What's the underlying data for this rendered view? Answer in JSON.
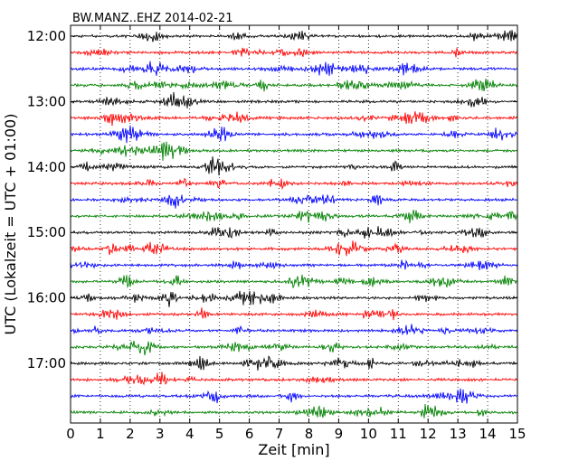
{
  "chart_data": {
    "type": "line",
    "title": "BW.MANZ..EHZ 2014-02-21",
    "xlabel": "Zeit  [min]",
    "ylabel": "UTC (Lokalzeit = UTC + 01:00)",
    "x_ticks": [
      "0",
      "1",
      "2",
      "3",
      "4",
      "5",
      "6",
      "7",
      "8",
      "9",
      "10",
      "11",
      "12",
      "13",
      "14",
      "15"
    ],
    "xlim": [
      0,
      15
    ],
    "y_ticks": [
      "12:00",
      "13:00",
      "14:00",
      "15:00",
      "16:00",
      "17:00"
    ],
    "grid": "vertical dotted at each minute",
    "trace_interval_min": 15,
    "first_trace": "12:00",
    "trace_count": 24,
    "trace_colors": [
      "#000000",
      "#ff0000",
      "#0000ff",
      "#008000"
    ],
    "series": [
      {
        "start": "12:00"
      },
      {
        "start": "12:15"
      },
      {
        "start": "12:30"
      },
      {
        "start": "12:45"
      },
      {
        "start": "13:00"
      },
      {
        "start": "13:15"
      },
      {
        "start": "13:30"
      },
      {
        "start": "13:45"
      },
      {
        "start": "14:00"
      },
      {
        "start": "14:15"
      },
      {
        "start": "14:30"
      },
      {
        "start": "14:45"
      },
      {
        "start": "15:00"
      },
      {
        "start": "15:15"
      },
      {
        "start": "15:30"
      },
      {
        "start": "15:45"
      },
      {
        "start": "16:00"
      },
      {
        "start": "16:15"
      },
      {
        "start": "16:30"
      },
      {
        "start": "16:45"
      },
      {
        "start": "17:00"
      },
      {
        "start": "17:15"
      },
      {
        "start": "17:30"
      },
      {
        "start": "17:45"
      }
    ]
  }
}
